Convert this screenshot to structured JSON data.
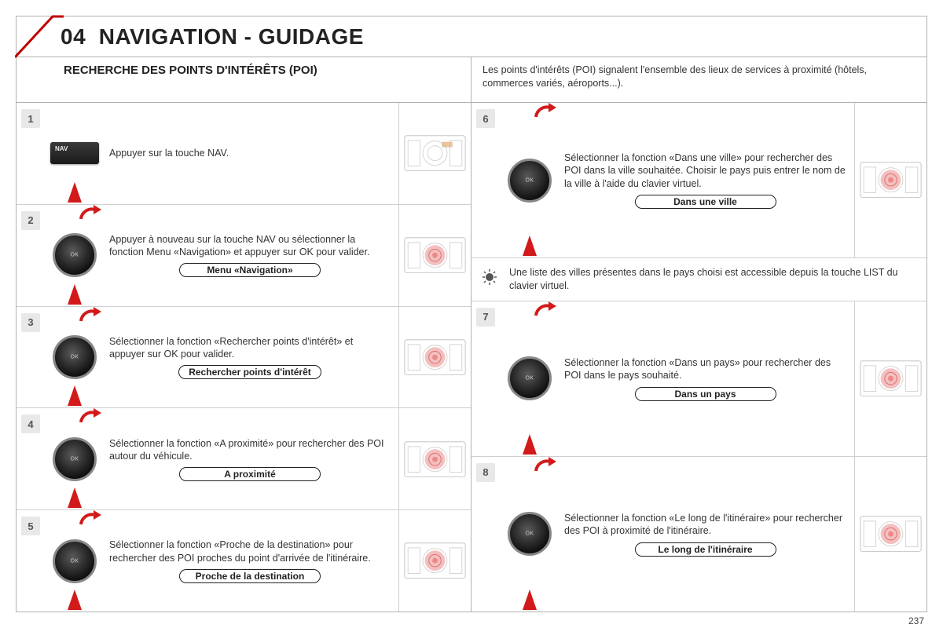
{
  "header": {
    "section_number": "04",
    "section_title": "NAVIGATION - GUIDAGE"
  },
  "subheader": {
    "left": "RECHERCHE DES POINTS D'INTÉRÊTS (POI)",
    "right": "Les points d'intérêts (POI) signalent l'ensemble des lieux de services à proximité (hôtels, commerces variés, aéroports...)."
  },
  "steps_left": [
    {
      "num": "1",
      "control": "nav-button",
      "text": "Appuyer sur la touche NAV.",
      "pill": null,
      "thumb_target": false
    },
    {
      "num": "2",
      "control": "dial",
      "text": "Appuyer à nouveau sur la touche NAV ou sélectionner la fonction Menu «Navigation» et appuyer sur OK pour valider.",
      "pill": "Menu «Navigation»",
      "thumb_target": true
    },
    {
      "num": "3",
      "control": "dial",
      "text": "Sélectionner la fonction «Rechercher points d'intérêt» et appuyer sur OK pour valider.",
      "pill": "Rechercher points d'intérêt",
      "thumb_target": true
    },
    {
      "num": "4",
      "control": "dial",
      "text": "Sélectionner la fonction «A proximité» pour rechercher des POI autour du véhicule.",
      "pill": "A proximité",
      "thumb_target": true
    },
    {
      "num": "5",
      "control": "dial",
      "text": "Sélectionner la fonction «Proche de la destination» pour rechercher des POI proches du point d'arrivée de l'itinéraire.",
      "pill": "Proche de la destination",
      "thumb_target": true
    }
  ],
  "steps_right": [
    {
      "num": "6",
      "control": "dial",
      "text": "Sélectionner la fonction «Dans une ville» pour rechercher des POI dans la ville souhaitée. Choisir le pays puis entrer le nom de la ville à l'aide du clavier virtuel.",
      "pill": "Dans une ville",
      "thumb_target": true
    }
  ],
  "tip": "Une liste des villes présentes dans le pays choisi est accessible depuis la touche LIST du clavier virtuel.",
  "steps_right_after": [
    {
      "num": "7",
      "control": "dial",
      "text": "Sélectionner la fonction «Dans un pays» pour rechercher des POI dans le pays souhaité.",
      "pill": "Dans un pays",
      "thumb_target": true
    },
    {
      "num": "8",
      "control": "dial",
      "text": "Sélectionner la fonction «Le long de l'itinéraire» pour rechercher des POI à proximité de l'itinéraire.",
      "pill": "Le long de l'itinéraire",
      "thumb_target": true
    }
  ],
  "page_number": "237",
  "colors": {
    "accent_red": "#c00000",
    "arrow_red": "#d21a1a",
    "border_grey": "#b0b0b0",
    "badge_grey": "#e8e8e8",
    "thumb_target": "#f2b9b9"
  }
}
